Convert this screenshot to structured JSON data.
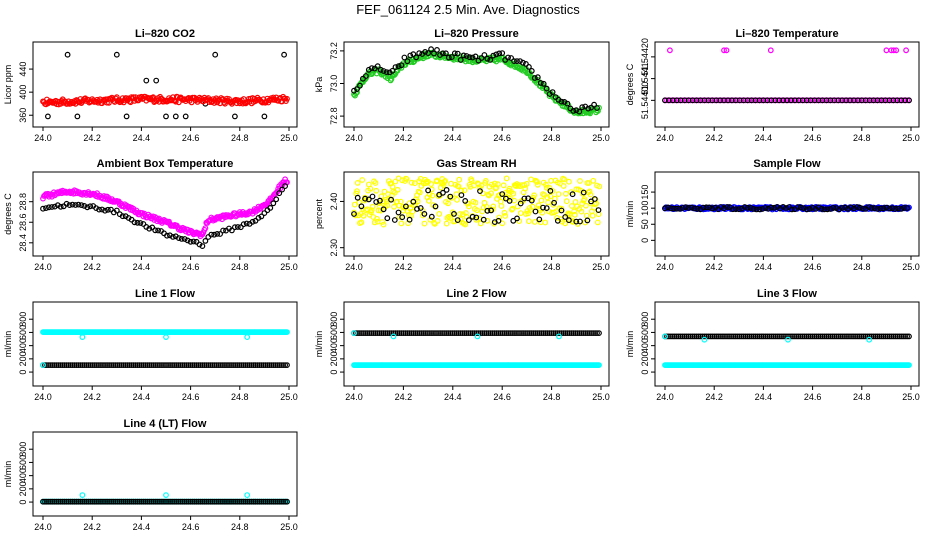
{
  "page": {
    "title": "FEF_061124  2.5 Min. Ave. Diagnostics"
  },
  "colors": {
    "black": "#000000",
    "red": "#ff0000",
    "green": "#22cc22",
    "magenta": "#ff00ff",
    "yellow": "#ffff00",
    "blue": "#0000ff",
    "cyan": "#00ffff"
  },
  "chart_data": [
    {
      "type": "scatter",
      "title": "Li–820 CO2",
      "ylabel": "Licor ppm",
      "xlim": [
        24.0,
        25.0
      ],
      "ylim": [
        350,
        480
      ],
      "xticks": [
        "24.0",
        "24.2",
        "24.4",
        "24.6",
        "24.8",
        "25.0"
      ],
      "yticks": [
        {
          "v": 360,
          "label": "360"
        },
        {
          "v": 400,
          "label": "400"
        },
        {
          "v": 440,
          "label": "440"
        }
      ],
      "series": [
        {
          "color": "black",
          "style": "sparse",
          "levels": [
            465,
            420,
            380,
            358
          ],
          "x_step": 0.04
        },
        {
          "color": "red",
          "style": "band",
          "knots": [
            [
              24.0,
              382
            ],
            [
              24.2,
              385
            ],
            [
              24.4,
              388
            ],
            [
              24.6,
              387
            ],
            [
              24.8,
              384
            ],
            [
              25.0,
              389
            ]
          ],
          "spread": 5
        }
      ]
    },
    {
      "type": "scatter",
      "title": "Li–820 Pressure",
      "ylabel": "kPa",
      "xlim": [
        24.0,
        25.0
      ],
      "ylim": [
        72.77,
        73.23
      ],
      "xticks": [
        "24.0",
        "24.2",
        "24.4",
        "24.6",
        "24.8",
        "25.0"
      ],
      "yticks": [
        {
          "v": 72.8,
          "label": "72.8"
        },
        {
          "v": 73.0,
          "label": "73.0"
        },
        {
          "v": 73.2,
          "label": "73.2"
        }
      ],
      "series": [
        {
          "color": "green",
          "style": "band",
          "knots": [
            [
              24.0,
              72.93
            ],
            [
              24.05,
              73.05
            ],
            [
              24.1,
              73.08
            ],
            [
              24.15,
              73.03
            ],
            [
              24.2,
              73.12
            ],
            [
              24.3,
              73.18
            ],
            [
              24.4,
              73.16
            ],
            [
              24.5,
              73.14
            ],
            [
              24.6,
              73.15
            ],
            [
              24.7,
              73.08
            ],
            [
              24.8,
              72.92
            ],
            [
              24.9,
              72.82
            ],
            [
              25.0,
              72.84
            ]
          ],
          "spread": 0.015
        },
        {
          "color": "black",
          "style": "band",
          "knots": [
            [
              24.0,
              72.95
            ],
            [
              24.05,
              73.06
            ],
            [
              24.1,
              73.1
            ],
            [
              24.15,
              73.05
            ],
            [
              24.2,
              73.14
            ],
            [
              24.3,
              73.2
            ],
            [
              24.4,
              73.17
            ],
            [
              24.5,
              73.15
            ],
            [
              24.6,
              73.17
            ],
            [
              24.7,
              73.1
            ],
            [
              24.8,
              72.94
            ],
            [
              24.9,
              72.83
            ],
            [
              25.0,
              72.86
            ]
          ],
          "spread": 0.02,
          "step": 0.012
        }
      ]
    },
    {
      "type": "scatter",
      "title": "Li–820 Temperature",
      "ylabel": "degrees C",
      "xlim": [
        24.0,
        25.0
      ],
      "ylim": [
        51.543905,
        51.54425
      ],
      "xticks": [
        "24.0",
        "24.2",
        "24.4",
        "24.6",
        "24.8",
        "25.0"
      ],
      "yticks": [
        {
          "v": 51.544,
          "label": "51.54400"
        },
        {
          "v": 51.5441,
          "label": "51.5441"
        },
        {
          "v": 51.5442,
          "label": "51.54420"
        }
      ],
      "series": [
        {
          "color": "magenta",
          "style": "line_pts",
          "y": 51.544,
          "step": 0.008
        },
        {
          "color": "black",
          "style": "line_pts",
          "y": 51.544,
          "step": 0.016
        },
        {
          "color": "magenta",
          "style": "points",
          "pts": [
            [
              24.02,
              51.54423
            ],
            [
              24.24,
              51.54423
            ],
            [
              24.25,
              51.54423
            ],
            [
              24.43,
              51.54423
            ],
            [
              24.9,
              51.54423
            ],
            [
              24.92,
              51.54423
            ],
            [
              24.93,
              51.54423
            ],
            [
              24.94,
              51.54423
            ],
            [
              24.98,
              51.54423
            ]
          ]
        }
      ]
    },
    {
      "type": "scatter",
      "title": "Ambient Box Temperature",
      "ylabel": "degrees C",
      "xlim": [
        24.0,
        25.0
      ],
      "ylim": [
        28.33,
        29.05
      ],
      "xticks": [
        "24.0",
        "24.2",
        "24.4",
        "24.6",
        "24.8",
        "25.0"
      ],
      "yticks": [
        {
          "v": 28.4,
          "label": "28.4"
        },
        {
          "v": 28.6,
          "label": "28.6"
        },
        {
          "v": 28.8,
          "label": "28.8"
        }
      ],
      "series": [
        {
          "color": "magenta",
          "style": "band",
          "knots": [
            [
              24.0,
              28.85
            ],
            [
              24.1,
              28.9
            ],
            [
              24.2,
              28.88
            ],
            [
              24.3,
              28.8
            ],
            [
              24.4,
              28.68
            ],
            [
              24.5,
              28.6
            ],
            [
              24.6,
              28.5
            ],
            [
              24.65,
              28.48
            ],
            [
              24.67,
              28.62
            ],
            [
              24.75,
              28.66
            ],
            [
              24.85,
              28.7
            ],
            [
              24.92,
              28.8
            ],
            [
              24.98,
              29.0
            ]
          ],
          "spread": 0.02
        },
        {
          "color": "black",
          "style": "band",
          "knots": [
            [
              24.0,
              28.74
            ],
            [
              24.1,
              28.77
            ],
            [
              24.2,
              28.75
            ],
            [
              24.3,
              28.7
            ],
            [
              24.4,
              28.58
            ],
            [
              24.5,
              28.48
            ],
            [
              24.6,
              28.42
            ],
            [
              24.65,
              28.38
            ],
            [
              24.67,
              28.46
            ],
            [
              24.75,
              28.52
            ],
            [
              24.85,
              28.6
            ],
            [
              24.92,
              28.72
            ],
            [
              24.98,
              28.95
            ]
          ],
          "spread": 0.015,
          "step": 0.012
        }
      ]
    },
    {
      "type": "scatter",
      "title": "Gas Stream RH",
      "ylabel": "percent",
      "xlim": [
        24.0,
        25.0
      ],
      "ylim": [
        2.295,
        2.455
      ],
      "xticks": [
        "24.0",
        "24.2",
        "24.4",
        "24.6",
        "24.8",
        "25.0"
      ],
      "yticks": [
        {
          "v": 2.3,
          "label": "2.30"
        },
        {
          "v": 2.4,
          "label": "2.40"
        }
      ],
      "series": [
        {
          "color": "yellow",
          "style": "noise",
          "center": 2.4,
          "spread": 0.05,
          "step": 0.003
        },
        {
          "color": "black",
          "style": "noise",
          "center": 2.39,
          "spread": 0.035,
          "step": 0.015
        }
      ]
    },
    {
      "type": "scatter",
      "title": "Sample Flow",
      "ylabel": "ml/min",
      "xlim": [
        24.0,
        25.0
      ],
      "ylim": [
        -30,
        200
      ],
      "xticks": [
        "24.0",
        "24.2",
        "24.4",
        "24.6",
        "24.8",
        "25.0"
      ],
      "yticks": [
        {
          "v": 0,
          "label": "0"
        },
        {
          "v": 50,
          "label": "50"
        },
        {
          "v": 100,
          "label": "100"
        },
        {
          "v": 150,
          "label": "150"
        }
      ],
      "series": [
        {
          "color": "blue",
          "style": "noise",
          "center": 100,
          "spread": 4,
          "step": 0.004
        },
        {
          "color": "black",
          "style": "noise",
          "center": 100,
          "spread": 4,
          "step": 0.012
        }
      ]
    },
    {
      "type": "scatter",
      "title": "Line 1 Flow",
      "ylabel": "ml/min",
      "xlim": [
        24.0,
        25.0
      ],
      "ylim": [
        -120,
        1000
      ],
      "xticks": [
        "24.0",
        "24.2",
        "24.4",
        "24.6",
        "24.8",
        "25.0"
      ],
      "yticks": [
        {
          "v": 0,
          "label": "0"
        },
        {
          "v": 200,
          "label": "200"
        },
        {
          "v": 400,
          "label": "400"
        },
        {
          "v": 600,
          "label": "600"
        },
        {
          "v": 800,
          "label": "800"
        }
      ],
      "series": [
        {
          "color": "cyan",
          "style": "line_pts",
          "y": 605,
          "step": 0.004
        },
        {
          "color": "black",
          "style": "line_pts",
          "y": 105,
          "step": 0.008
        },
        {
          "color": "cyan",
          "style": "points",
          "pts": [
            [
              24.0,
              105
            ],
            [
              24.16,
              530
            ],
            [
              24.5,
              530
            ],
            [
              24.83,
              530
            ]
          ]
        }
      ]
    },
    {
      "type": "scatter",
      "title": "Line 2 Flow",
      "ylabel": "ml/min",
      "xlim": [
        24.0,
        25.0
      ],
      "ylim": [
        -120,
        1000
      ],
      "xticks": [
        "24.0",
        "24.2",
        "24.4",
        "24.6",
        "24.8",
        "25.0"
      ],
      "yticks": [
        {
          "v": 0,
          "label": "0"
        },
        {
          "v": 200,
          "label": "200"
        },
        {
          "v": 400,
          "label": "400"
        },
        {
          "v": 600,
          "label": "600"
        },
        {
          "v": 800,
          "label": "800"
        }
      ],
      "series": [
        {
          "color": "cyan",
          "style": "line_pts",
          "y": 105,
          "step": 0.004
        },
        {
          "color": "black",
          "style": "line_pts",
          "y": 590,
          "step": 0.008
        },
        {
          "color": "cyan",
          "style": "points",
          "pts": [
            [
              24.0,
              590
            ],
            [
              24.16,
              540
            ],
            [
              24.5,
              540
            ],
            [
              24.83,
              540
            ]
          ]
        }
      ]
    },
    {
      "type": "scatter",
      "title": "Line 3 Flow",
      "ylabel": "ml/min",
      "xlim": [
        24.0,
        25.0
      ],
      "ylim": [
        -120,
        1000
      ],
      "xticks": [
        "24.0",
        "24.2",
        "24.4",
        "24.6",
        "24.8",
        "25.0"
      ],
      "yticks": [
        {
          "v": 0,
          "label": "0"
        },
        {
          "v": 200,
          "label": "200"
        },
        {
          "v": 400,
          "label": "400"
        },
        {
          "v": 600,
          "label": "600"
        },
        {
          "v": 800,
          "label": "800"
        }
      ],
      "series": [
        {
          "color": "cyan",
          "style": "line_pts",
          "y": 105,
          "step": 0.004
        },
        {
          "color": "black",
          "style": "line_pts",
          "y": 540,
          "step": 0.008
        },
        {
          "color": "cyan",
          "style": "points",
          "pts": [
            [
              24.0,
              540
            ],
            [
              24.16,
              490
            ],
            [
              24.5,
              490
            ],
            [
              24.83,
              490
            ]
          ]
        }
      ]
    },
    {
      "type": "scatter",
      "title": "Line 4 (LT) Flow",
      "ylabel": "ml/min",
      "xlim": [
        24.0,
        25.0
      ],
      "ylim": [
        -120,
        1000
      ],
      "xticks": [
        "24.0",
        "24.2",
        "24.4",
        "24.6",
        "24.8",
        "25.0"
      ],
      "yticks": [
        {
          "v": 0,
          "label": "0"
        },
        {
          "v": 200,
          "label": "200"
        },
        {
          "v": 400,
          "label": "400"
        },
        {
          "v": 600,
          "label": "600"
        },
        {
          "v": 800,
          "label": "800"
        }
      ],
      "series": [
        {
          "color": "cyan",
          "style": "line_pts",
          "y": 5,
          "step": 0.004
        },
        {
          "color": "black",
          "style": "line_pts",
          "y": 5,
          "step": 0.008
        },
        {
          "color": "cyan",
          "style": "points",
          "pts": [
            [
              24.16,
              105
            ],
            [
              24.5,
              105
            ],
            [
              24.83,
              105
            ]
          ]
        }
      ]
    }
  ]
}
